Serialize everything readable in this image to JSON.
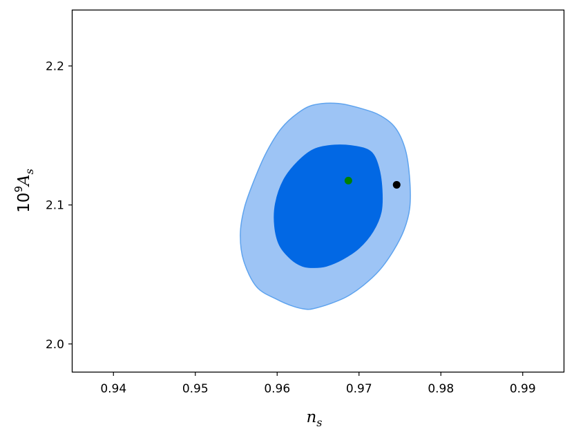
{
  "chart_data": {
    "type": "contour",
    "title": "",
    "xlabel": "n_s",
    "ylabel": "10^9 A_s",
    "xlim": [
      0.935,
      0.995
    ],
    "ylim": [
      1.98,
      2.24
    ],
    "xticks": [
      0.94,
      0.95,
      0.96,
      0.97,
      0.98,
      0.99
    ],
    "xtick_labels": [
      "0.94",
      "0.95",
      "0.96",
      "0.97",
      "0.98",
      "0.99"
    ],
    "yticks": [
      2.0,
      2.1,
      2.2
    ],
    "ytick_labels": [
      "2.0",
      "2.1",
      "2.2"
    ],
    "grid": false,
    "contours": [
      {
        "level": "outer",
        "fill": "#9dc4f5",
        "stroke": "#5ea3ee",
        "points": [
          [
            0.9635,
            2.025
          ],
          [
            0.9645,
            2.0255
          ],
          [
            0.9665,
            2.029
          ],
          [
            0.9685,
            2.034
          ],
          [
            0.9705,
            2.042
          ],
          [
            0.9725,
            2.053
          ],
          [
            0.9742,
            2.067
          ],
          [
            0.9755,
            2.082
          ],
          [
            0.9762,
            2.098
          ],
          [
            0.9762,
            2.118
          ],
          [
            0.9757,
            2.139
          ],
          [
            0.9745,
            2.155
          ],
          [
            0.9727,
            2.164
          ],
          [
            0.9705,
            2.169
          ],
          [
            0.9675,
            2.173
          ],
          [
            0.9645,
            2.172
          ],
          [
            0.9625,
            2.166
          ],
          [
            0.9605,
            2.155
          ],
          [
            0.9587,
            2.138
          ],
          [
            0.9572,
            2.118
          ],
          [
            0.956,
            2.098
          ],
          [
            0.9555,
            2.079
          ],
          [
            0.9559,
            2.06
          ],
          [
            0.9575,
            2.041
          ],
          [
            0.96,
            2.032
          ],
          [
            0.962,
            2.027
          ]
        ]
      },
      {
        "level": "inner",
        "fill": "#0268e4",
        "stroke": "#0268e4",
        "points": [
          [
            0.9645,
            2.055
          ],
          [
            0.966,
            2.056
          ],
          [
            0.968,
            2.061
          ],
          [
            0.97,
            2.069
          ],
          [
            0.9717,
            2.081
          ],
          [
            0.9727,
            2.095
          ],
          [
            0.9728,
            2.111
          ],
          [
            0.9724,
            2.127
          ],
          [
            0.9715,
            2.138
          ],
          [
            0.9697,
            2.142
          ],
          [
            0.967,
            2.143
          ],
          [
            0.9645,
            2.14
          ],
          [
            0.9625,
            2.131
          ],
          [
            0.9608,
            2.118
          ],
          [
            0.9598,
            2.101
          ],
          [
            0.9597,
            2.085
          ],
          [
            0.9603,
            2.071
          ],
          [
            0.9617,
            2.061
          ],
          [
            0.9631,
            2.056
          ]
        ]
      }
    ],
    "points": [
      {
        "x": 0.9687,
        "y": 2.1175,
        "color": "#008000"
      },
      {
        "x": 0.9746,
        "y": 2.1145,
        "color": "#000000"
      }
    ]
  }
}
